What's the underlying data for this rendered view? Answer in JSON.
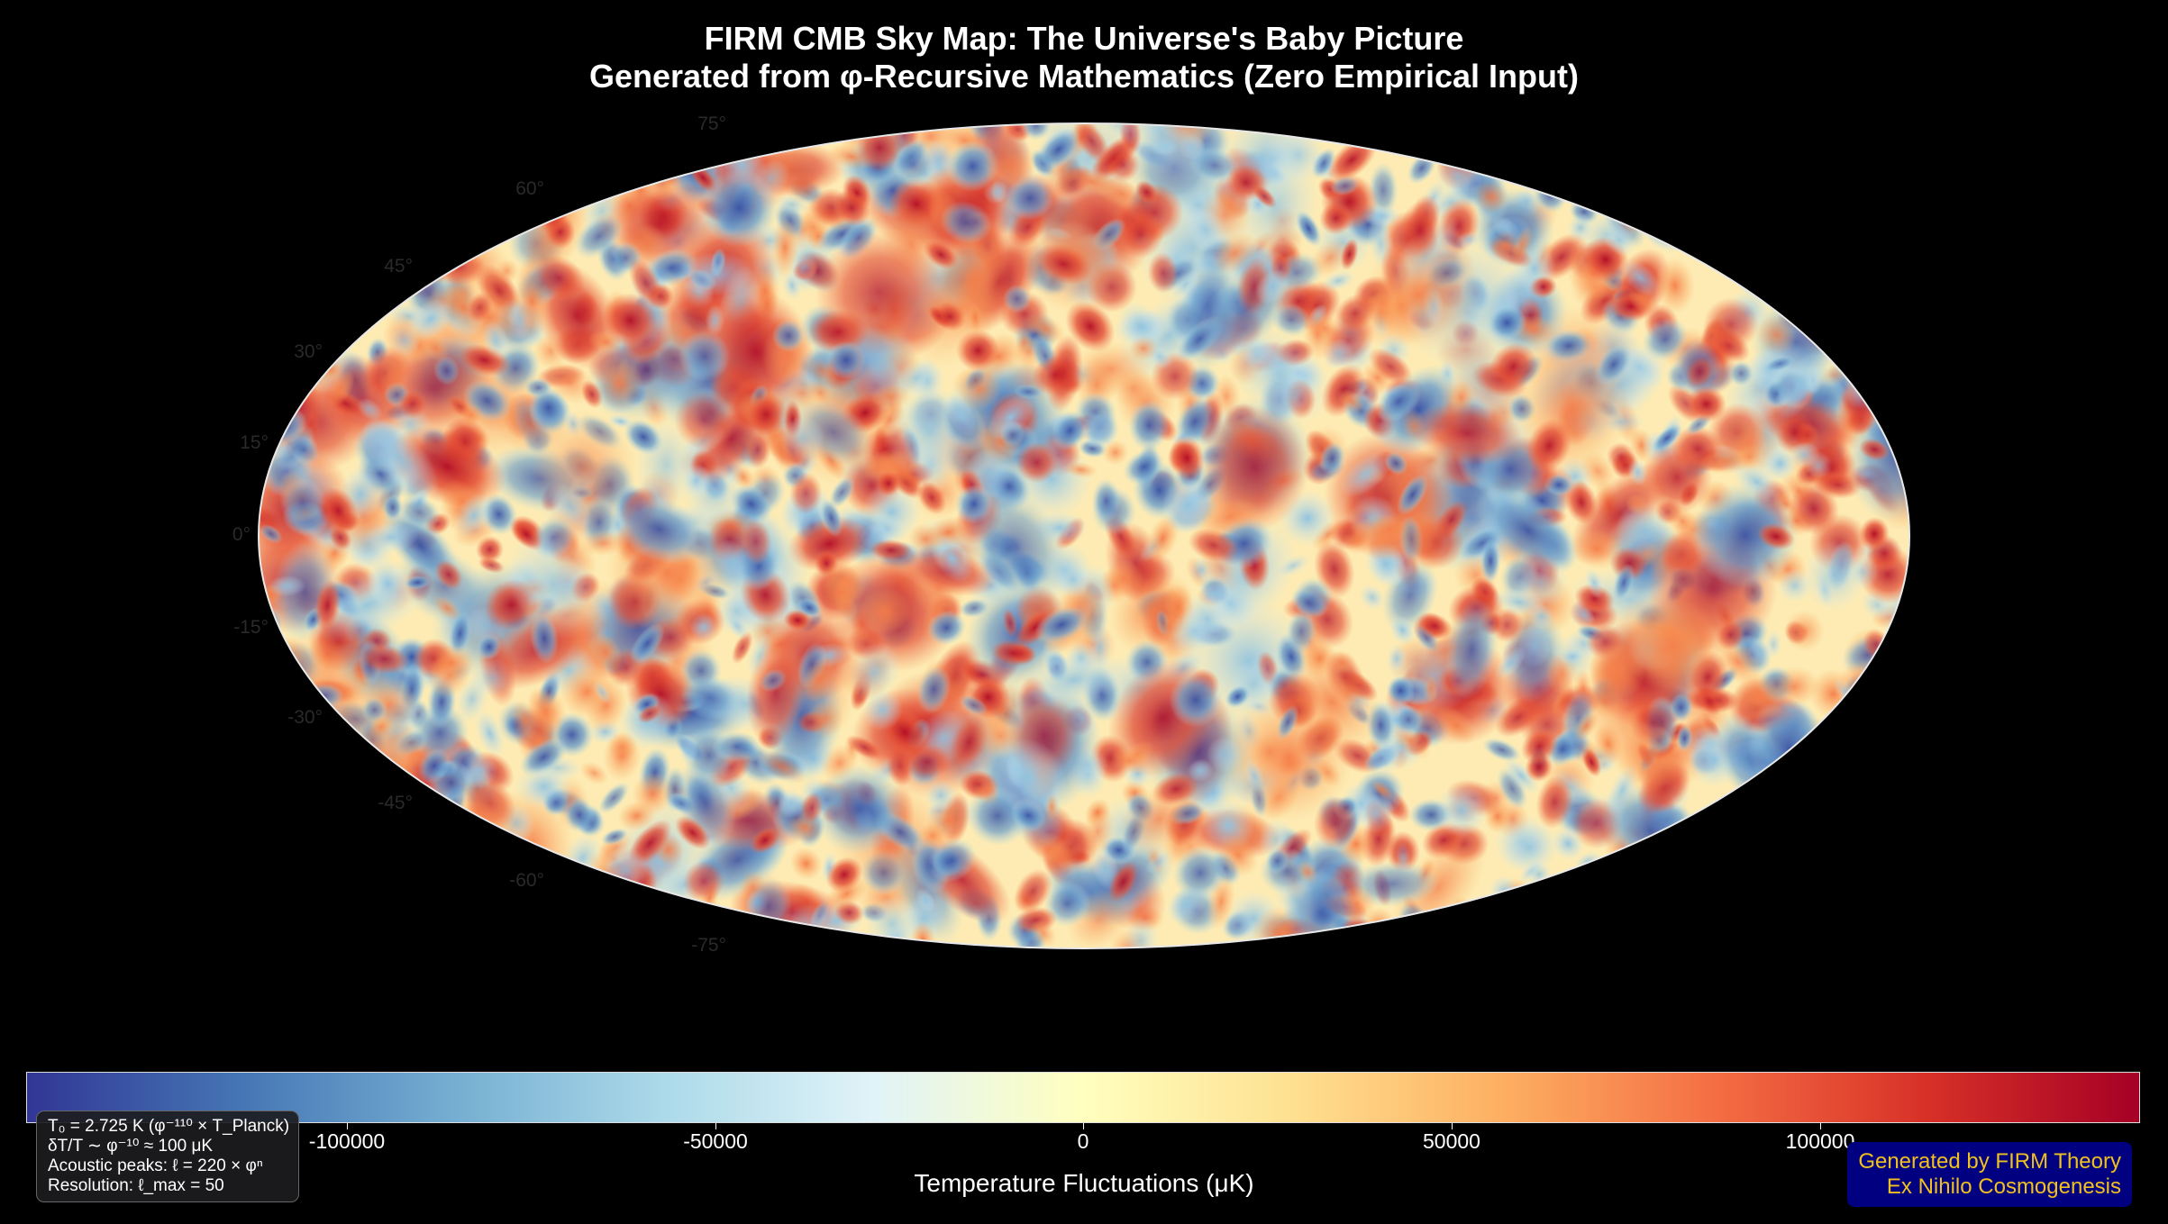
{
  "title": {
    "line1": "FIRM CMB Sky Map: The Universe's Baby Picture",
    "line2": "Generated from φ-Recursive Mathematics (Zero Empirical Input)"
  },
  "latitude_labels": [
    "75°",
    "60°",
    "45°",
    "30°",
    "15°",
    "0°",
    "-15°",
    "-30°",
    "-45°",
    "-60°",
    "-75°"
  ],
  "colorbar": {
    "label": "Temperature Fluctuations (μK)",
    "ticks": [
      "-100000",
      "-50000",
      "0",
      "50000",
      "100000"
    ],
    "colors": [
      "#313695",
      "#4575b4",
      "#74add1",
      "#abd9e9",
      "#e0f3f8",
      "#ffffbf",
      "#fee090",
      "#fdae61",
      "#f46d43",
      "#d73027",
      "#a50026"
    ]
  },
  "info_box": {
    "lines": [
      "T₀ = 2.725 K (φ⁻¹¹⁰ × T_Planck)",
      "δT/T ∼ φ⁻¹⁰ ≈ 100 μK",
      "Acoustic peaks: ℓ = 220 × φⁿ",
      "Resolution: ℓ_max = 50"
    ]
  },
  "credit_box": {
    "line1": "Generated by FIRM Theory",
    "line2": "Ex Nihilo Cosmogenesis"
  }
}
